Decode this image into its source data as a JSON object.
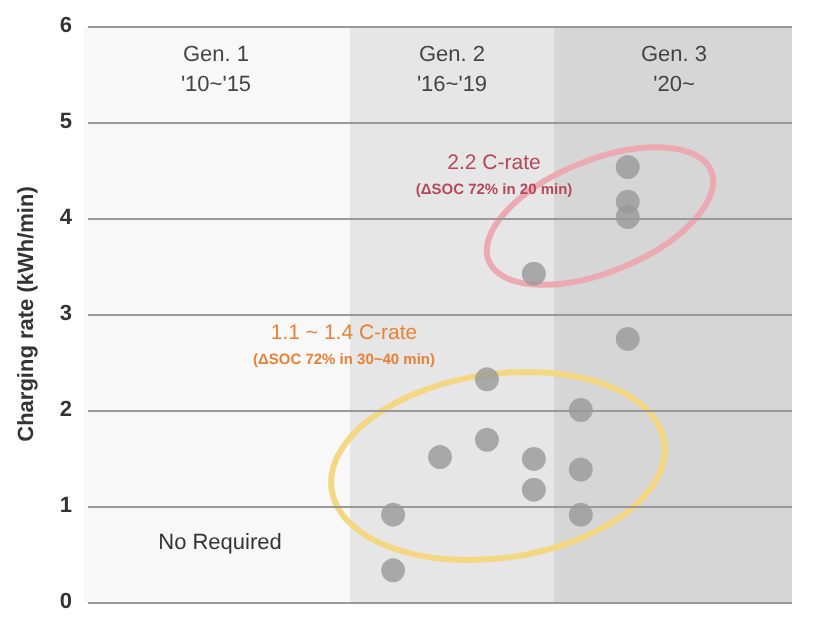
{
  "chart_data": {
    "type": "scatter",
    "ylabel": "Charging rate (kWh/min)",
    "categories": [
      null,
      null,
      null,
      null,
      null,
      null,
      null,
      null,
      null,
      null,
      null,
      null,
      null,
      null,
      null
    ],
    "series": [
      {
        "color": "#999999",
        "values": [
          null,
          null,
          null,
          null,
          null,
          null,
          0.91,
          1.51,
          2.32,
          3.42,
          2.0,
          4.53,
          null,
          null,
          null
        ]
      },
      {
        "color": "#999999",
        "values": [
          null,
          null,
          null,
          null,
          null,
          null,
          0.33,
          null,
          1.69,
          1.49,
          1.38,
          4.17,
          null,
          null,
          null
        ]
      },
      {
        "color": "#999999",
        "values": [
          null,
          null,
          null,
          null,
          null,
          null,
          null,
          null,
          null,
          1.17,
          0.91,
          4.01,
          null,
          null,
          null
        ]
      },
      {
        "color": "#999999",
        "values": [
          null,
          null,
          null,
          null,
          null,
          null,
          null,
          null,
          null,
          null,
          null,
          2.74,
          null,
          null,
          null
        ]
      }
    ],
    "marker": "circle",
    "ylim": [
      0,
      6
    ],
    "yticks": [
      0,
      1,
      2,
      3,
      4,
      5,
      6
    ],
    "tick_labels": "y",
    "grid": "y",
    "annotations": [
      "Gen. 1\n'10~'15",
      "Gen. 2\n'16~'19",
      "Gen. 3\n'20~",
      "2.2 C-rate\n(ΔSOC 72% in 20 min)",
      "1.1 ~ 1.4 C-rate\n(ΔSOC 72% in 30~40 min)",
      "No Required"
    ]
  }
}
